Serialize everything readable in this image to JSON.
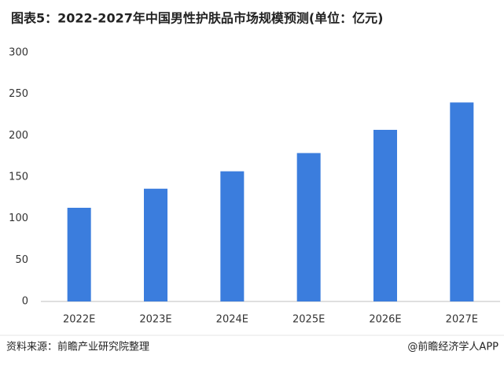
{
  "chart_data": {
    "type": "bar",
    "title": "图表5：2022-2027年中国男性护肤品市场规模预测(单位：亿元)",
    "categories": [
      "2022E",
      "2023E",
      "2024E",
      "2025E",
      "2026E",
      "2027E"
    ],
    "values": [
      113,
      136,
      157,
      179,
      207,
      240
    ],
    "color": "#3b7ddd",
    "ylim": [
      0,
      300
    ],
    "yticks": [
      0,
      50,
      100,
      150,
      200,
      250,
      300
    ],
    "grid": false,
    "source": "资料来源：前瞻产业研究院整理",
    "credit": "@前瞻经济学人APP"
  }
}
